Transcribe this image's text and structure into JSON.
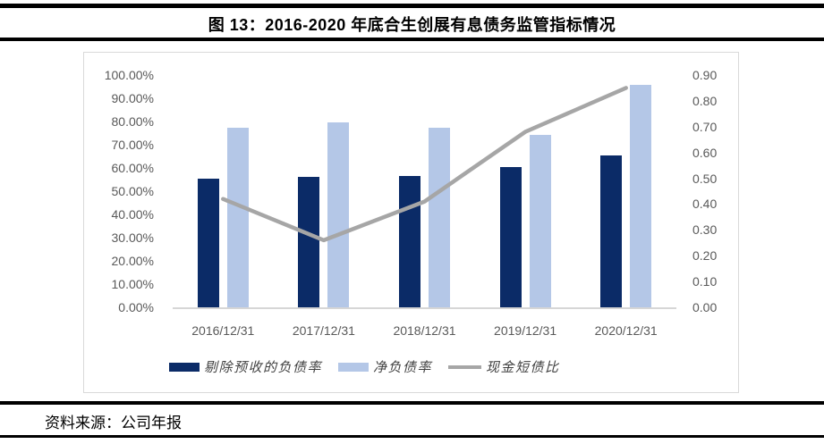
{
  "title": {
    "text": "图 13：2016-2020 年底合生创展有息债务监管指标情况"
  },
  "footer": {
    "source_label": "资料来源：公司年报"
  },
  "chart_data": {
    "type": "combo-bar-line",
    "title": "图 13：2016-2020 年底合生创展有息债务监管指标情况",
    "categories": [
      "2016/12/31",
      "2017/12/31",
      "2018/12/31",
      "2019/12/31",
      "2020/12/31"
    ],
    "series": [
      {
        "key": "debt_ratio_excl_presales",
        "name": "剔除预收的负债率",
        "type": "bar",
        "axis": "left",
        "unit": "%",
        "color": "#0b2b67",
        "values": [
          55.4,
          56.2,
          56.5,
          60.2,
          65.4
        ]
      },
      {
        "key": "net_debt_ratio",
        "name": "净负债率",
        "type": "bar",
        "axis": "left",
        "unit": "%",
        "color": "#b4c7e7",
        "values": [
          77.5,
          79.5,
          77.5,
          74.1,
          95.9
        ]
      },
      {
        "key": "cash_to_short_debt",
        "name": "现金短债比",
        "type": "line",
        "axis": "right",
        "unit": "ratio",
        "color": "#a6a6a6",
        "values": [
          0.42,
          0.26,
          0.41,
          0.68,
          0.85
        ]
      }
    ],
    "left_axis": {
      "min": 0,
      "max": 100,
      "step": 10,
      "unit": "%",
      "ticks": [
        "100.00%",
        "90.00%",
        "80.00%",
        "70.00%",
        "60.00%",
        "50.00%",
        "40.00%",
        "30.00%",
        "20.00%",
        "10.00%",
        "0.00%"
      ]
    },
    "right_axis": {
      "min": 0,
      "max": 0.9,
      "step": 0.1,
      "ticks": [
        "0.90",
        "0.80",
        "0.70",
        "0.60",
        "0.50",
        "0.40",
        "0.30",
        "0.20",
        "0.10",
        "0.00"
      ]
    },
    "legend_position": "bottom",
    "grid": false
  }
}
